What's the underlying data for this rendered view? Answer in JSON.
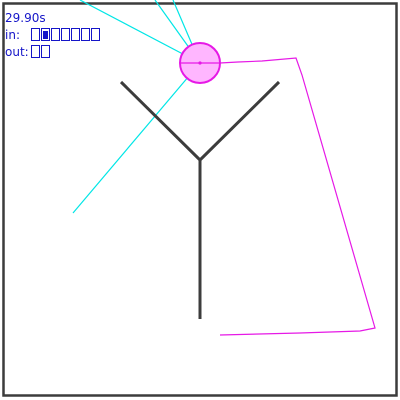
{
  "hud": {
    "time": "29.90s",
    "in_label": "in:",
    "out_label": "out:",
    "inputs": [
      false,
      true,
      false,
      false,
      false,
      false,
      false
    ],
    "outputs": [
      false,
      false
    ]
  },
  "colors": {
    "frame": "#3c3c3c",
    "body": "#3c3c3c",
    "sensor_rays": "#00e6e6",
    "agent_fill": "#ffb6ff",
    "agent_outline": "#e619e6",
    "trail": "#e619e6",
    "hud_text": "#1515c8"
  }
}
